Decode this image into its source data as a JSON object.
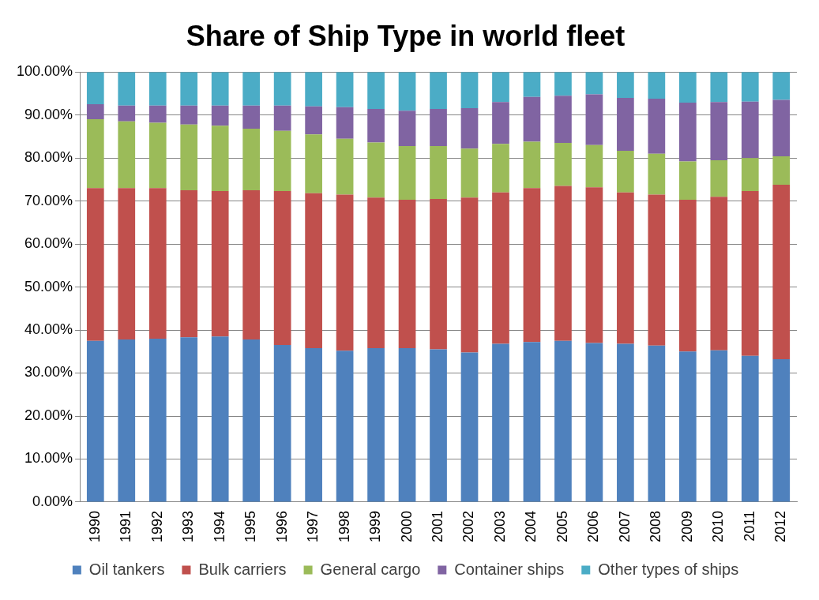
{
  "chart_data": {
    "type": "bar",
    "title": "Share of Ship Type in world fleet",
    "stacked": true,
    "grid": "y",
    "legend": "bottom",
    "categories": [
      "1990",
      "1991",
      "1992",
      "1993",
      "1994",
      "1995",
      "1996",
      "1997",
      "1998",
      "1999",
      "2000",
      "2001",
      "2002",
      "2003",
      "2004",
      "2005",
      "2006",
      "2007",
      "2008",
      "2009",
      "2010",
      "2011",
      "2012"
    ],
    "ylim": [
      0,
      100
    ],
    "yticks": [
      {
        "value": 0,
        "label": "0.00%"
      },
      {
        "value": 10,
        "label": "10.00%"
      },
      {
        "value": 20,
        "label": "20.00%"
      },
      {
        "value": 30,
        "label": "30.00%"
      },
      {
        "value": 40,
        "label": "40.00%"
      },
      {
        "value": 50,
        "label": "50.00%"
      },
      {
        "value": 60,
        "label": "60.00%"
      },
      {
        "value": 70,
        "label": "70.00%"
      },
      {
        "value": 80,
        "label": "80.00%"
      },
      {
        "value": 90,
        "label": "90.00%"
      },
      {
        "value": 100,
        "label": "100.00%"
      }
    ],
    "series": [
      {
        "name": "Oil tankers",
        "color": "#4f81bd",
        "values": [
          37.5,
          37.8,
          38,
          38.3,
          38.5,
          37.8,
          36.5,
          35.8,
          35.2,
          35.8,
          35.8,
          35.5,
          34.8,
          36.8,
          37.2,
          37.5,
          37,
          36.8,
          36.4,
          35,
          35.3,
          34,
          33.2
        ]
      },
      {
        "name": "Bulk carriers",
        "color": "#c0504d",
        "values": [
          35.5,
          35.2,
          35,
          34.2,
          33.8,
          34.7,
          35.8,
          36,
          36.3,
          35,
          34.5,
          35,
          36,
          35.2,
          35.8,
          36,
          36.2,
          35.2,
          35.1,
          35.3,
          35.7,
          38.3,
          40.6
        ]
      },
      {
        "name": "General cargo",
        "color": "#9bbb59",
        "values": [
          16,
          15.5,
          15.2,
          15.3,
          15.2,
          14.3,
          14,
          13.7,
          13,
          12.8,
          12.5,
          12.3,
          11.4,
          11.3,
          10.8,
          10,
          9.8,
          9.7,
          9.5,
          8.9,
          8.5,
          7.7,
          6.6
        ]
      },
      {
        "name": "Container ships",
        "color": "#8064a2",
        "values": [
          3.5,
          3.7,
          4,
          4.4,
          4.7,
          5.4,
          5.9,
          6.5,
          7.3,
          7.8,
          8.2,
          8.6,
          9.4,
          9.7,
          10.4,
          11,
          11.8,
          12.3,
          12.8,
          13.7,
          13.5,
          13.1,
          13.1
        ]
      },
      {
        "name": "Other types of ships",
        "color": "#4bacc6",
        "values": [
          7.5,
          7.8,
          7.8,
          7.8,
          7.8,
          7.8,
          7.8,
          8,
          8.2,
          8.6,
          9,
          8.6,
          8.4,
          7,
          5.8,
          5.5,
          5.2,
          6,
          6.2,
          7.1,
          7,
          6.9,
          6.5
        ]
      }
    ]
  }
}
